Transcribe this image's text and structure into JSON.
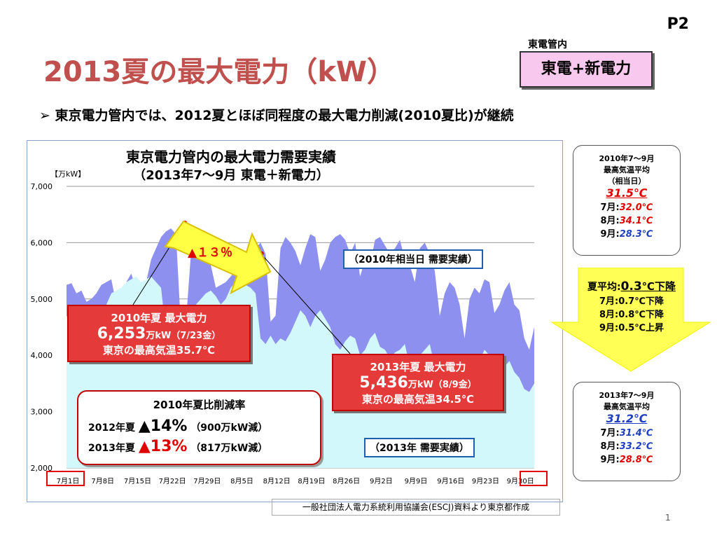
{
  "page_code": "P2",
  "area_label": "東電管内",
  "area_badge": "東電+新電力",
  "title": "2013夏の最大電力（kW）",
  "headline": "東京電力管内では、2012夏とほぼ同程度の最大電力削減(2010夏比)が継続",
  "headline_marker": "➢",
  "chart_data": {
    "type": "area",
    "title": "東京電力管内の最大電力需要実績",
    "subtitle": "（2013年7～9月 東電＋新電力）",
    "ylabel": "【万kW】",
    "ylim": [
      2000,
      7000
    ],
    "yticks": [
      "2,000",
      "3,000",
      "4,000",
      "5,000",
      "6,000",
      "7,000"
    ],
    "xticks": [
      "7月1日",
      "7月8日",
      "7月15日",
      "7月22日",
      "7月29日",
      "8月5日",
      "8月12日",
      "8月19日",
      "8月26日",
      "9月2日",
      "9月9日",
      "9月16日",
      "9月23日",
      "9月30日"
    ],
    "grid": true,
    "series": [
      {
        "name": "（2010年相当日 需要実績）",
        "color": "#8d90ee",
        "values": [
          5250,
          5280,
          5100,
          5150,
          4950,
          5000,
          5100,
          5250,
          5300,
          5350,
          4900,
          5100,
          5300,
          5450,
          5200,
          5150,
          5300,
          5700,
          5900,
          6100,
          6200,
          6253,
          6150,
          4500,
          4600,
          5800,
          6000,
          6150,
          5900,
          5600,
          5200,
          5250,
          5300,
          5400,
          5500,
          5200,
          5300,
          5600,
          5900,
          6000,
          5800,
          4600,
          4700,
          5900,
          6100,
          6000,
          5850,
          5600,
          5900,
          6150,
          6100,
          5500,
          5700,
          6000,
          6100,
          6150,
          6050,
          5800,
          6000,
          5400,
          5700,
          5600,
          6050,
          6100,
          5950,
          5800,
          5900,
          6050,
          5700,
          5600,
          5300,
          5900,
          6000,
          5800,
          5500,
          4700,
          5100,
          5300,
          5200,
          4900,
          4300,
          5000,
          5200,
          5100,
          5350,
          5300,
          4750,
          4900,
          5150,
          5300,
          4900,
          4800,
          4300,
          4100,
          4500
        ]
      },
      {
        "name": "（2013年 需要実績）",
        "color": "#d3f8fb",
        "values": [
          4700,
          4600,
          4500,
          4400,
          4300,
          4500,
          4700,
          4650,
          4900,
          5100,
          5150,
          5200,
          5300,
          5350,
          5400,
          5300,
          5350,
          5400,
          5300,
          5200,
          4400,
          4450,
          4500,
          4550,
          4600,
          4800,
          4900,
          5000,
          5100,
          5150,
          5050,
          4900,
          5000,
          5200,
          5300,
          5436,
          5250,
          5200,
          5100,
          4300,
          4200,
          4350,
          4200,
          4300,
          4250,
          4400,
          4600,
          4800,
          4700,
          4500,
          4700,
          4800,
          4650,
          4500,
          4200,
          4100,
          4250,
          4350,
          4300,
          4000,
          4100,
          4300,
          4400,
          4150,
          4100,
          3950,
          4050,
          4100,
          4200,
          3800,
          3900,
          4000,
          4100,
          4200,
          3800,
          3600,
          3700,
          3850,
          3700,
          3500,
          3400,
          3600,
          3800,
          3900,
          4100,
          4000,
          3700,
          3650,
          3800,
          3900,
          3700,
          3600,
          3400,
          3350,
          3500
        ]
      }
    ],
    "peak_2010": {
      "label": "2010年夏 最大電力",
      "value": "6,253",
      "unit": "万kW",
      "date": "（7/23金）",
      "temp": "東京の最高気温35.7℃"
    },
    "peak_2013": {
      "label": "2013年夏 最大電力",
      "value": "5,436",
      "unit": "万kW",
      "date": "（8/9金）",
      "temp": "東京の最高気温34.5℃"
    },
    "arrow_label": "▲１３％",
    "reduction": {
      "title": "2010年夏比削減率",
      "rows": [
        {
          "year": "2012年夏",
          "mark": "▲",
          "pct": "14%",
          "detail": "（900万kW減）"
        },
        {
          "year": "2013年夏",
          "mark": "▲",
          "pct": "13%",
          "detail": "（817万kW減）"
        }
      ]
    }
  },
  "temp_2010": {
    "l1": "2010年7～9月",
    "l2": "最高気温平均",
    "l3": "（相当日）",
    "avg": "31.5℃",
    "months": [
      {
        "m": "7月:",
        "v": "32.0℃"
      },
      {
        "m": "8月:",
        "v": "34.1℃"
      },
      {
        "m": "9月:",
        "v": "28.3℃"
      }
    ]
  },
  "temp_diff": {
    "summer_label": "夏平均:",
    "summer_val": "0.3",
    "summer_unit": "℃下降",
    "rows": [
      {
        "m": "7月:",
        "v": "0.7",
        "u": "℃下降"
      },
      {
        "m": "8月:",
        "v": "0.8",
        "u": "℃下降"
      },
      {
        "m": "9月:",
        "v": "0.5",
        "u": "℃上昇"
      }
    ]
  },
  "temp_2013": {
    "l1": "2013年7～9月",
    "l2": "最高気温平均",
    "avg": "31.2℃",
    "months": [
      {
        "m": "7月:",
        "v": "31.4℃"
      },
      {
        "m": "8月:",
        "v": "33.2℃"
      },
      {
        "m": "9月:",
        "v": "28.8℃"
      }
    ]
  },
  "source": "一般社団法人電力系統利用協議会(ESCJ)資料より東京都作成",
  "page_number": "1"
}
